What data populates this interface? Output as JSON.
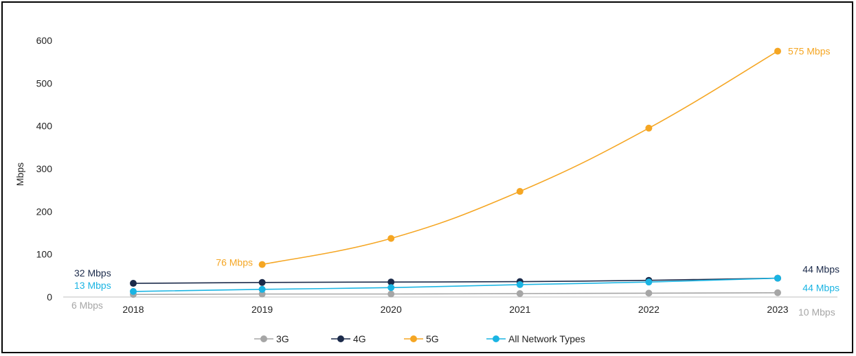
{
  "chart_data": {
    "type": "line",
    "ylabel": "Mbps",
    "xlabel": "",
    "ylim": [
      0,
      600
    ],
    "yticks": [
      0,
      100,
      200,
      300,
      400,
      500,
      600
    ],
    "categories": [
      "2018",
      "2019",
      "2020",
      "2021",
      "2022",
      "2023"
    ],
    "grid": false,
    "legend_position": "bottom",
    "series": [
      {
        "name": "3G",
        "color": "#a6a6a6",
        "values": [
          6,
          7,
          7,
          8,
          9,
          10
        ]
      },
      {
        "name": "4G",
        "color": "#1b2a4a",
        "values": [
          32,
          34,
          35,
          36,
          39,
          44
        ]
      },
      {
        "name": "5G",
        "color": "#f5a623",
        "values": [
          null,
          76,
          137,
          247,
          395,
          575
        ]
      },
      {
        "name": "All Network Types",
        "color": "#1ab4e3",
        "values": [
          13,
          18,
          22,
          29,
          35,
          44
        ]
      }
    ],
    "annotations": [
      {
        "text": "575 Mbps",
        "series": "5G",
        "color": "#f5a623"
      },
      {
        "text": "76 Mbps",
        "series": "5G",
        "color": "#f5a623"
      },
      {
        "text": "32 Mbps",
        "series": "4G",
        "color": "#1b2a4a"
      },
      {
        "text": "13 Mbps",
        "series": "All Network Types",
        "color": "#1ab4e3"
      },
      {
        "text": "6 Mbps",
        "series": "3G",
        "color": "#a6a6a6"
      },
      {
        "text": "44 Mbps",
        "series": "4G",
        "color": "#1b2a4a"
      },
      {
        "text": "44 Mbps",
        "series": "All Network Types",
        "color": "#1ab4e3"
      },
      {
        "text": "10 Mbps",
        "series": "3G",
        "color": "#a6a6a6"
      }
    ]
  }
}
